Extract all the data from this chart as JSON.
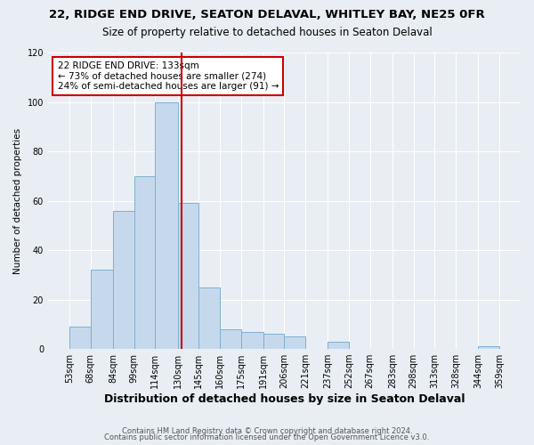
{
  "title": "22, RIDGE END DRIVE, SEATON DELAVAL, WHITLEY BAY, NE25 0FR",
  "subtitle": "Size of property relative to detached houses in Seaton Delaval",
  "xlabel": "Distribution of detached houses by size in Seaton Delaval",
  "ylabel": "Number of detached properties",
  "bin_labels": [
    "53sqm",
    "68sqm",
    "84sqm",
    "99sqm",
    "114sqm",
    "130sqm",
    "145sqm",
    "160sqm",
    "175sqm",
    "191sqm",
    "206sqm",
    "221sqm",
    "237sqm",
    "252sqm",
    "267sqm",
    "283sqm",
    "298sqm",
    "313sqm",
    "328sqm",
    "344sqm",
    "359sqm"
  ],
  "bin_edges": [
    53,
    68,
    84,
    99,
    114,
    130,
    145,
    160,
    175,
    191,
    206,
    221,
    237,
    252,
    267,
    283,
    298,
    313,
    328,
    344,
    359
  ],
  "bar_heights": [
    9,
    32,
    56,
    70,
    100,
    59,
    25,
    8,
    7,
    6,
    5,
    0,
    3,
    0,
    0,
    0,
    0,
    0,
    0,
    1
  ],
  "bar_color": "#c6d9ec",
  "bar_edge_color": "#7db0d0",
  "property_value": 133,
  "vline_color": "#cc0000",
  "annotation_line1": "22 RIDGE END DRIVE: 133sqm",
  "annotation_line2": "← 73% of detached houses are smaller (274)",
  "annotation_line3": "24% of semi-detached houses are larger (91) →",
  "annotation_box_color": "#ffffff",
  "annotation_box_edge": "#cc0000",
  "ylim": [
    0,
    120
  ],
  "yticks": [
    0,
    20,
    40,
    60,
    80,
    100,
    120
  ],
  "footer1": "Contains HM Land Registry data © Crown copyright and database right 2024.",
  "footer2": "Contains public sector information licensed under the Open Government Licence v3.0.",
  "bg_color": "#e8eef4",
  "plot_bg_color": "#e8eef4",
  "title_fontsize": 9.5,
  "subtitle_fontsize": 8.5,
  "xlabel_fontsize": 9,
  "ylabel_fontsize": 7.5,
  "tick_fontsize": 7,
  "annot_fontsize": 7.5,
  "footer_fontsize": 6
}
